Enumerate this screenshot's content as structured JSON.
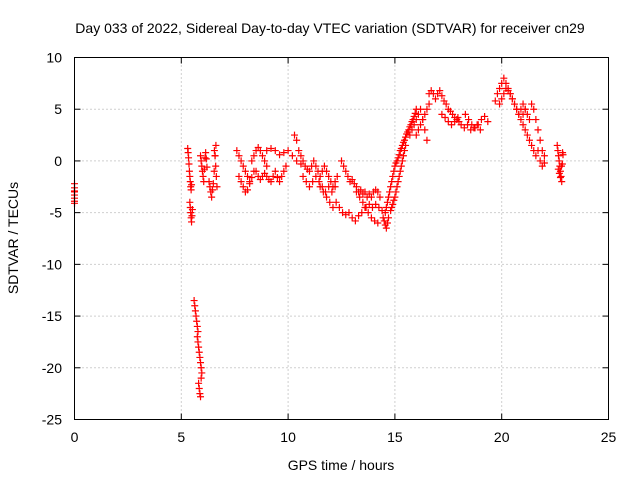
{
  "chart_data": {
    "type": "scatter",
    "title": "Day 033 of 2022, Sidereal Day-to-day VTEC variation (SDTVAR) for receiver cn29",
    "xlabel": "GPS time / hours",
    "ylabel": "SDTVAR / TECUs",
    "xlim": [
      0,
      25
    ],
    "ylim": [
      -25,
      10
    ],
    "xticks": [
      "0",
      "5",
      "10",
      "15",
      "20",
      "25"
    ],
    "yticks": [
      "10",
      "5",
      "0",
      "-5",
      "-10",
      "-15",
      "-20",
      "-25"
    ],
    "grid": true,
    "marker": "plus",
    "color": "#ff0000",
    "series": [
      {
        "name": "SDTVAR",
        "x": [
          0.0,
          0.0,
          0.0,
          0.0,
          0.0,
          0.0,
          0.0,
          0.0,
          5.3,
          5.32,
          5.34,
          5.36,
          5.38,
          5.4,
          5.42,
          5.44,
          5.46,
          5.48,
          5.4,
          5.42,
          5.44,
          5.46,
          5.48,
          5.5,
          5.52,
          5.6,
          5.63,
          5.66,
          5.69,
          5.72,
          5.75,
          5.78,
          5.81,
          5.84,
          5.87,
          5.9,
          5.93,
          5.75,
          5.78,
          5.81,
          5.84,
          5.87,
          5.9,
          5.93,
          5.96,
          5.9,
          5.93,
          5.96,
          5.99,
          6.02,
          6.05,
          6.08,
          6.11,
          6.14,
          6.17,
          6.2,
          6.3,
          6.34,
          6.38,
          6.42,
          6.46,
          6.5,
          6.54,
          6.58,
          6.62,
          6.55,
          6.58,
          6.61,
          6.64,
          6.67,
          7.6,
          7.7,
          7.8,
          7.9,
          8.0,
          8.1,
          8.2,
          7.7,
          7.8,
          7.9,
          8.0,
          8.1,
          8.2,
          8.3,
          8.4,
          8.3,
          8.4,
          8.5,
          8.6,
          8.7,
          8.8,
          8.9,
          9.0,
          8.5,
          8.6,
          8.7,
          8.8,
          8.9,
          9.0,
          9.1,
          9.2,
          9.3,
          9.4,
          9.5,
          9.6,
          9.7,
          9.8,
          9.9,
          9.0,
          9.2,
          9.4,
          9.6,
          9.8,
          10.0,
          10.2,
          10.4,
          10.6,
          10.3,
          10.4,
          10.5,
          10.6,
          10.7,
          10.8,
          10.9,
          11.0,
          11.1,
          11.2,
          11.3,
          11.4,
          11.5,
          11.6,
          11.7,
          11.8,
          11.9,
          12.0,
          12.1,
          12.2,
          12.3,
          10.7,
          10.85,
          11.0,
          11.15,
          11.3,
          11.45,
          11.6,
          11.75,
          11.9,
          12.05,
          12.2,
          11.5,
          11.65,
          11.8,
          11.95,
          12.1,
          12.25,
          12.4,
          12.55,
          12.7,
          12.85,
          13.0,
          13.15,
          13.3,
          13.45,
          13.6,
          13.75,
          13.9,
          14.05,
          14.2,
          12.5,
          12.6,
          12.7,
          12.8,
          12.9,
          13.0,
          13.1,
          13.2,
          13.3,
          13.4,
          13.5,
          13.6,
          13.7,
          13.8,
          13.9,
          14.0,
          14.1,
          14.2,
          14.3,
          13.2,
          13.35,
          13.5,
          13.65,
          13.8,
          13.95,
          14.1,
          14.25,
          14.4,
          14.55,
          14.45,
          14.5,
          14.55,
          14.6,
          14.65,
          14.7,
          14.6,
          14.65,
          14.7,
          14.75,
          14.8,
          14.85,
          14.9,
          14.95,
          15.0,
          15.05,
          15.1,
          15.15,
          15.2,
          15.25,
          15.3,
          15.35,
          15.4,
          15.45,
          15.5,
          15.55,
          15.6,
          15.65,
          15.7,
          15.75,
          15.8,
          15.85,
          15.9,
          15.95,
          16.0,
          14.8,
          14.85,
          14.9,
          14.95,
          15.0,
          15.05,
          15.1,
          15.15,
          15.2,
          15.25,
          15.3,
          15.35,
          15.4,
          15.45,
          15.5,
          15.7,
          15.8,
          15.9,
          16.0,
          16.1,
          16.2,
          16.3,
          16.4,
          16.5,
          16.0,
          16.1,
          16.2,
          16.3,
          16.4,
          16.5,
          16.6,
          16.6,
          16.7,
          16.8,
          16.9,
          17.0,
          17.1,
          17.2,
          17.3,
          17.4,
          17.5,
          17.6,
          17.7,
          17.8,
          17.9,
          18.0,
          17.2,
          17.35,
          17.5,
          17.65,
          17.8,
          17.95,
          18.1,
          18.25,
          18.4,
          18.55,
          18.7,
          18.85,
          19.0,
          18.3,
          18.45,
          18.6,
          18.75,
          18.9,
          19.05,
          19.2,
          19.35,
          19.7,
          19.8,
          19.9,
          20.0,
          20.1,
          20.2,
          20.3,
          20.4,
          20.5,
          20.6,
          20.7,
          20.8,
          20.9,
          21.0,
          21.1,
          21.2,
          21.3,
          19.9,
          20.0,
          20.1,
          20.2,
          20.3,
          20.4,
          20.5,
          20.6,
          20.7,
          20.8,
          20.9,
          21.0,
          21.1,
          21.0,
          21.1,
          21.2,
          21.3,
          21.4,
          21.5,
          21.6,
          21.7,
          21.8,
          21.9,
          22.0,
          21.4,
          21.5,
          21.6,
          21.7,
          21.8,
          21.9,
          22.0,
          22.6,
          22.63,
          22.66,
          22.69,
          22.72,
          22.75,
          22.78,
          22.81,
          22.84,
          22.87,
          22.65,
          22.7,
          22.75,
          22.8,
          22.85
        ],
        "y": [
          -2.2,
          -2.6,
          -3.0,
          -3.3,
          -3.6,
          -3.9,
          -4.1,
          -2.9,
          1.2,
          0.8,
          0.3,
          -0.3,
          -1.0,
          -1.5,
          -2.0,
          -2.5,
          -2.8,
          -2.3,
          -4.0,
          -4.5,
          -5.0,
          -5.5,
          -5.9,
          -5.3,
          -4.7,
          -13.5,
          -14.0,
          -14.5,
          -15.0,
          -15.5,
          -16.0,
          -16.5,
          -21.5,
          -22.0,
          -22.5,
          -22.8,
          -21.0,
          -17.0,
          -17.5,
          -18.0,
          -18.5,
          -19.0,
          -19.5,
          -20.0,
          -20.5,
          0.5,
          0.0,
          -0.5,
          -1.0,
          -1.5,
          -2.0,
          -0.8,
          0.3,
          0.8,
          0.2,
          -0.6,
          -2.0,
          -2.5,
          -3.0,
          -3.5,
          -2.8,
          -2.2,
          -1.0,
          0.5,
          1.5,
          1.0,
          0.5,
          -0.5,
          -1.5,
          -2.5,
          1.0,
          0.5,
          0.0,
          -0.5,
          -1.0,
          -1.5,
          -2.0,
          -1.5,
          -2.0,
          -2.5,
          -3.0,
          -2.8,
          -2.2,
          -1.6,
          -1.0,
          0.0,
          0.5,
          1.0,
          1.3,
          1.0,
          0.5,
          0.0,
          -0.5,
          -1.0,
          -1.5,
          -1.8,
          -1.5,
          -1.2,
          -1.5,
          -1.8,
          -2.0,
          -1.5,
          -1.0,
          -1.6,
          -2.0,
          -1.5,
          -1.0,
          -0.5,
          1.0,
          1.2,
          1.0,
          0.6,
          0.8,
          1.0,
          0.5,
          0.0,
          -0.3,
          2.5,
          2.0,
          1.0,
          0.5,
          0.0,
          -0.5,
          -0.8,
          -1.0,
          -0.5,
          0.0,
          -0.5,
          -1.0,
          -1.5,
          -1.0,
          -0.5,
          -1.0,
          -1.5,
          -2.0,
          -2.5,
          -2.0,
          -1.5,
          -1.5,
          -2.0,
          -2.5,
          -2.0,
          -1.5,
          -2.0,
          -2.5,
          -3.0,
          -2.5,
          -3.0,
          -2.5,
          -2.5,
          -3.0,
          -3.5,
          -4.0,
          -4.5,
          -4.0,
          -4.5,
          -5.0,
          -5.2,
          -5.0,
          -5.5,
          -5.8,
          -5.3,
          -5.0,
          -4.5,
          -5.0,
          -5.5,
          -5.8,
          -6.0,
          0.0,
          -0.5,
          -1.0,
          -1.5,
          -2.0,
          -1.8,
          -2.2,
          -2.5,
          -3.0,
          -2.8,
          -3.2,
          -3.0,
          -3.5,
          -3.2,
          -3.5,
          -3.0,
          -2.8,
          -3.0,
          -3.5,
          -3.0,
          -3.5,
          -4.0,
          -4.5,
          -4.2,
          -4.5,
          -4.2,
          -4.5,
          -4.8,
          -5.0,
          -5.5,
          -5.8,
          -6.2,
          -6.5,
          -6.0,
          -5.5,
          -4.5,
          -4.0,
          -3.5,
          -3.0,
          -2.5,
          -2.0,
          -1.5,
          -1.0,
          -0.5,
          -0.2,
          0.0,
          0.3,
          0.6,
          1.0,
          1.2,
          1.5,
          1.8,
          2.0,
          2.3,
          2.6,
          2.8,
          3.0,
          3.3,
          3.5,
          3.8,
          4.0,
          4.3,
          4.6,
          5.0,
          -4.8,
          -4.5,
          -4.2,
          -3.8,
          -3.5,
          -3.0,
          -2.5,
          -2.0,
          -1.5,
          -1.0,
          -0.5,
          0.0,
          0.5,
          1.0,
          1.5,
          2.5,
          3.0,
          3.5,
          4.0,
          4.5,
          5.0,
          4.0,
          3.0,
          2.0,
          2.5,
          3.0,
          3.5,
          4.0,
          4.5,
          5.0,
          5.5,
          6.5,
          6.8,
          6.5,
          6.0,
          6.5,
          6.8,
          6.3,
          5.8,
          5.5,
          5.0,
          4.8,
          4.5,
          4.2,
          4.0,
          3.8,
          4.5,
          4.2,
          3.8,
          3.5,
          3.8,
          4.2,
          3.5,
          3.2,
          3.5,
          3.0,
          3.2,
          3.5,
          3.0,
          4.5,
          4.0,
          3.5,
          3.2,
          3.5,
          4.0,
          4.3,
          3.8,
          5.8,
          6.5,
          7.0,
          7.5,
          8.0,
          7.5,
          7.0,
          6.5,
          6.0,
          5.5,
          5.0,
          4.5,
          5.0,
          5.5,
          5.0,
          4.5,
          4.0,
          5.5,
          6.0,
          6.5,
          7.0,
          6.8,
          6.5,
          6.0,
          5.5,
          5.0,
          4.5,
          4.0,
          4.5,
          5.0,
          3.5,
          3.0,
          2.5,
          2.0,
          1.5,
          1.0,
          0.5,
          1.0,
          0.0,
          -0.5,
          -0.2,
          5.5,
          5.0,
          4.0,
          3.0,
          2.0,
          1.0,
          0.5,
          1.5,
          1.0,
          0.5,
          0.0,
          -0.5,
          -1.0,
          -1.5,
          -2.0,
          -0.3,
          0.6,
          -0.8,
          -1.2,
          -1.6,
          -0.5,
          0.8
        ]
      }
    ]
  }
}
